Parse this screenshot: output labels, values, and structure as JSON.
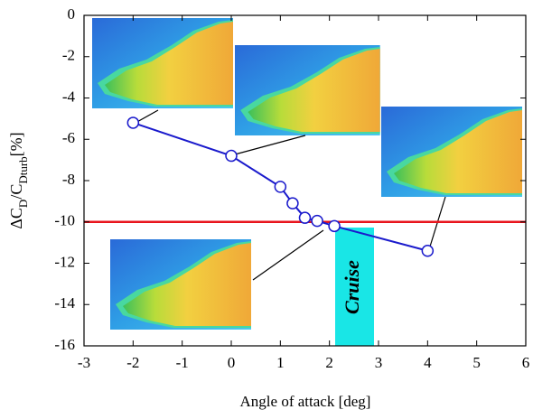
{
  "chart_data": {
    "type": "line",
    "xlabel": "Angle of attack [deg]",
    "ylabel": [
      "ΔC",
      "D",
      "/C",
      "Dturb",
      "[%]"
    ],
    "annotation": "Cruise",
    "x": [
      -2,
      0,
      1,
      1.25,
      1.5,
      1.75,
      2.1,
      4
    ],
    "series": [
      {
        "color": "#1a1acc",
        "values": [
          -5.2,
          -6.8,
          -8.3,
          -9.1,
          -9.8,
          -9.95,
          -10.2,
          -11.4
        ]
      }
    ],
    "hline": {
      "value": -10,
      "color": "#e8141c"
    },
    "xlim": [
      -3,
      6
    ],
    "xticks": [
      -3,
      -2,
      -1,
      0,
      1,
      2,
      3,
      4,
      5,
      6
    ],
    "ylim": [
      -16,
      0
    ],
    "yticks": [
      0,
      -2,
      -4,
      -6,
      -8,
      -10,
      -12,
      -14,
      -16
    ]
  }
}
